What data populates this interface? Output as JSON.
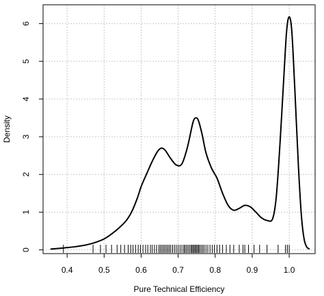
{
  "chart_data": {
    "type": "line",
    "title": "",
    "xlabel": "Pure Technical Efficiency",
    "ylabel": "Density",
    "xlim": [
      0.335,
      1.07
    ],
    "ylim": [
      -0.1,
      6.5
    ],
    "x_ticks": [
      0.4,
      0.5,
      0.6,
      0.7,
      0.8,
      0.9,
      1.0
    ],
    "x_tick_labels": [
      "0.4",
      "0.5",
      "0.6",
      "0.7",
      "0.8",
      "0.9",
      "1.0"
    ],
    "y_ticks": [
      0,
      1,
      2,
      3,
      4,
      5,
      6
    ],
    "y_tick_labels": [
      "0",
      "1",
      "2",
      "3",
      "4",
      "5",
      "6"
    ],
    "grid": true,
    "rug": true,
    "series": [
      {
        "values_xy": [
          [
            0.355,
            0.02
          ],
          [
            0.38,
            0.04
          ],
          [
            0.4,
            0.06
          ],
          [
            0.42,
            0.08
          ],
          [
            0.44,
            0.11
          ],
          [
            0.46,
            0.15
          ],
          [
            0.48,
            0.21
          ],
          [
            0.5,
            0.29
          ],
          [
            0.52,
            0.42
          ],
          [
            0.54,
            0.58
          ],
          [
            0.56,
            0.78
          ],
          [
            0.575,
            1.02
          ],
          [
            0.59,
            1.38
          ],
          [
            0.6,
            1.68
          ],
          [
            0.615,
            2.02
          ],
          [
            0.63,
            2.35
          ],
          [
            0.645,
            2.62
          ],
          [
            0.655,
            2.7
          ],
          [
            0.665,
            2.64
          ],
          [
            0.68,
            2.42
          ],
          [
            0.695,
            2.25
          ],
          [
            0.71,
            2.28
          ],
          [
            0.725,
            2.72
          ],
          [
            0.74,
            3.38
          ],
          [
            0.748,
            3.5
          ],
          [
            0.755,
            3.42
          ],
          [
            0.765,
            3.05
          ],
          [
            0.775,
            2.58
          ],
          [
            0.79,
            2.17
          ],
          [
            0.805,
            1.9
          ],
          [
            0.82,
            1.5
          ],
          [
            0.835,
            1.18
          ],
          [
            0.85,
            1.05
          ],
          [
            0.865,
            1.1
          ],
          [
            0.88,
            1.18
          ],
          [
            0.895,
            1.14
          ],
          [
            0.91,
            1.0
          ],
          [
            0.925,
            0.85
          ],
          [
            0.94,
            0.78
          ],
          [
            0.955,
            0.82
          ],
          [
            0.965,
            1.4
          ],
          [
            0.975,
            2.8
          ],
          [
            0.985,
            4.5
          ],
          [
            0.993,
            5.8
          ],
          [
            1.0,
            6.18
          ],
          [
            1.007,
            5.8
          ],
          [
            1.015,
            4.3
          ],
          [
            1.025,
            2.2
          ],
          [
            1.033,
            0.9
          ],
          [
            1.04,
            0.3
          ],
          [
            1.047,
            0.08
          ],
          [
            1.055,
            0.02
          ]
        ]
      }
    ],
    "rug_x": [
      0.39,
      0.47,
      0.49,
      0.505,
      0.52,
      0.535,
      0.545,
      0.555,
      0.565,
      0.572,
      0.578,
      0.585,
      0.592,
      0.598,
      0.605,
      0.612,
      0.618,
      0.625,
      0.63,
      0.636,
      0.642,
      0.648,
      0.652,
      0.656,
      0.66,
      0.664,
      0.668,
      0.672,
      0.676,
      0.68,
      0.685,
      0.69,
      0.695,
      0.7,
      0.705,
      0.71,
      0.715,
      0.718,
      0.722,
      0.726,
      0.73,
      0.734,
      0.737,
      0.74,
      0.743,
      0.746,
      0.749,
      0.752,
      0.755,
      0.758,
      0.762,
      0.766,
      0.77,
      0.775,
      0.78,
      0.786,
      0.792,
      0.798,
      0.805,
      0.812,
      0.82,
      0.83,
      0.84,
      0.85,
      0.865,
      0.875,
      0.88,
      0.89,
      0.905,
      0.92,
      0.94,
      0.97,
      0.99,
      0.995,
      1.0
    ]
  }
}
